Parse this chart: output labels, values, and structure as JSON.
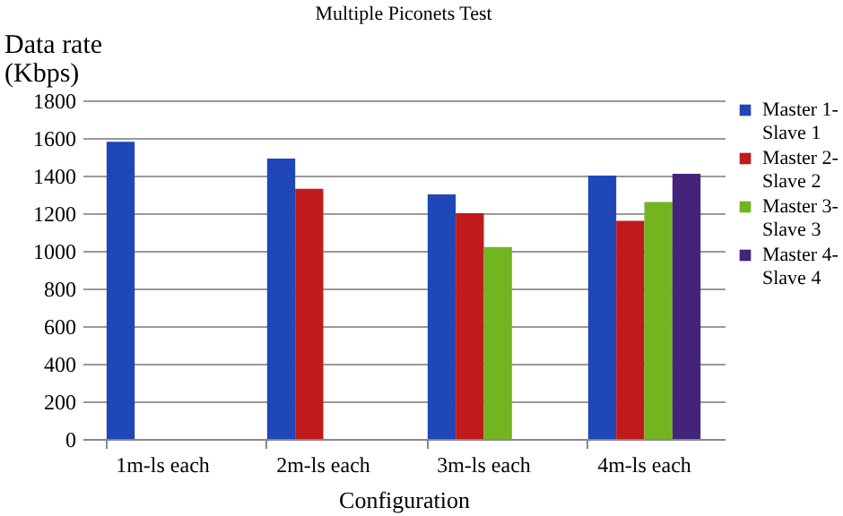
{
  "chart_data": {
    "type": "bar",
    "title": "Multiple Piconets Test",
    "xlabel": "Configuration",
    "ylabel": "Data rate\n(Kbps)",
    "categories": [
      "1m-ls each",
      "2m-ls each",
      "3m-ls each",
      "4m-ls each"
    ],
    "series": [
      {
        "name": "Master 1-Slave 1",
        "color": "#1f47b8",
        "values": [
          1580,
          1490,
          1300,
          1400
        ]
      },
      {
        "name": "Master 2-Slave 2",
        "color": "#c01a1a",
        "values": [
          null,
          1330,
          1200,
          1160
        ]
      },
      {
        "name": "Master 3-Slave 3",
        "color": "#72b521",
        "values": [
          null,
          null,
          1020,
          1260
        ]
      },
      {
        "name": "Master 4-Slave 4",
        "color": "#44247a",
        "values": [
          null,
          null,
          null,
          1410
        ]
      }
    ],
    "ylim": [
      0,
      1800
    ],
    "yticks": [
      0,
      200,
      400,
      600,
      800,
      1000,
      1200,
      1400,
      1600,
      1800
    ],
    "grid": "y",
    "legend": "right"
  }
}
